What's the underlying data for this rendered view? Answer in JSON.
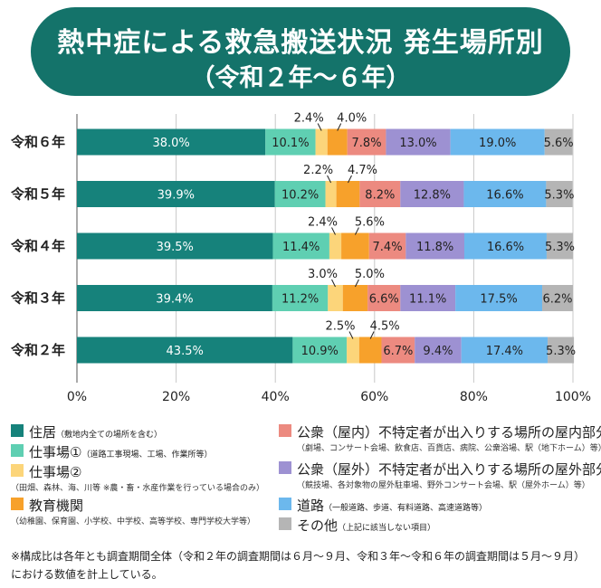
{
  "title": {
    "line1": "熱中症による救急搬送状況 発生場所別",
    "line2": "（令和２年～６年）"
  },
  "chart_data": {
    "type": "bar",
    "orientation": "horizontal",
    "stacked": true,
    "categories": [
      "令和６年",
      "令和５年",
      "令和４年",
      "令和３年",
      "令和２年"
    ],
    "xlim": [
      0,
      100
    ],
    "x_ticks": [
      "0%",
      "20%",
      "40%",
      "60%",
      "80%",
      "100%"
    ],
    "grid": true,
    "series": [
      {
        "name": "住居",
        "color": "#16827b",
        "values": [
          38.0,
          39.9,
          39.5,
          39.4,
          43.5
        ],
        "labels": [
          "38.0%",
          "39.9%",
          "39.5%",
          "39.4%",
          "43.5%"
        ]
      },
      {
        "name": "仕事場①",
        "color": "#5fcfb2",
        "values": [
          10.1,
          10.2,
          11.4,
          11.2,
          10.9
        ],
        "labels": [
          "10.1%",
          "10.2%",
          "11.4%",
          "11.2%",
          "10.9%"
        ]
      },
      {
        "name": "仕事場②",
        "color": "#fcd57a",
        "values": [
          2.4,
          2.2,
          2.4,
          3.0,
          2.5
        ],
        "labels": [
          "2.4%",
          "2.2%",
          "2.4%",
          "3.0%",
          "2.5%"
        ]
      },
      {
        "name": "教育機関",
        "color": "#f7a12b",
        "values": [
          4.0,
          4.7,
          5.6,
          5.0,
          4.5
        ],
        "labels": [
          "4.0%",
          "4.7%",
          "5.6%",
          "5.0%",
          "4.5%"
        ]
      },
      {
        "name": "公衆（屋内）",
        "color": "#ec8a80",
        "values": [
          7.8,
          8.2,
          7.4,
          6.6,
          6.7
        ],
        "labels": [
          "7.8%",
          "8.2%",
          "7.4%",
          "6.6%",
          "6.7%"
        ]
      },
      {
        "name": "公衆（屋外）",
        "color": "#9d91d2",
        "values": [
          13.0,
          12.8,
          11.8,
          11.1,
          9.4
        ],
        "labels": [
          "13.0%",
          "12.8%",
          "11.8%",
          "11.1%",
          "9.4%"
        ]
      },
      {
        "name": "道路",
        "color": "#6cb8ed",
        "values": [
          19.0,
          16.6,
          16.6,
          17.5,
          17.4
        ],
        "labels": [
          "19.0%",
          "16.6%",
          "16.6%",
          "17.5%",
          "17.4%"
        ]
      },
      {
        "name": "その他",
        "color": "#b5b5b5",
        "values": [
          5.6,
          5.3,
          5.3,
          6.2,
          5.3
        ],
        "labels": [
          "5.6%",
          "5.3%",
          "5.3%",
          "6.2%",
          "5.3%"
        ]
      }
    ]
  },
  "legend": [
    {
      "main": "住居",
      "note": "（敷地内全ての場所を含む）",
      "sub": ""
    },
    {
      "main": "仕事場①",
      "note": "（道路工事現場、工場、作業所等）",
      "sub": ""
    },
    {
      "main": "仕事場②",
      "note": "",
      "sub": "（田畑、森林、海、川等 ※農・畜・水産作業を行っている場合のみ）"
    },
    {
      "main": "教育機関",
      "note": "",
      "sub": "（幼稚園、保育園、小学校、中学校、高等学校、専門学校大学等）"
    },
    {
      "main": "公衆（屋内）不特定者が出入りする場所の屋内部分",
      "note": "",
      "sub": "（劇場、コンサート会場、飲食店、百貨店、病院、公衆浴場、駅（地下ホーム）等）"
    },
    {
      "main": "公衆（屋外）不特定者が出入りする場所の屋外部分",
      "note": "",
      "sub": "（競技場、各対象物の屋外駐車場、野外コンサート会場、駅（屋外ホーム）等）"
    },
    {
      "main": "道路",
      "note": "（一般道路、歩道、有料道路、高速道路等）",
      "sub": ""
    },
    {
      "main": "その他",
      "note": "（上記に該当しない項目）",
      "sub": ""
    }
  ],
  "footnote": "※構成比は各年とも調査期間全体（令和２年の調査期間は６月～９月、令和３年～令和６年の調査期間は５月～９月）における数値を計上している。"
}
